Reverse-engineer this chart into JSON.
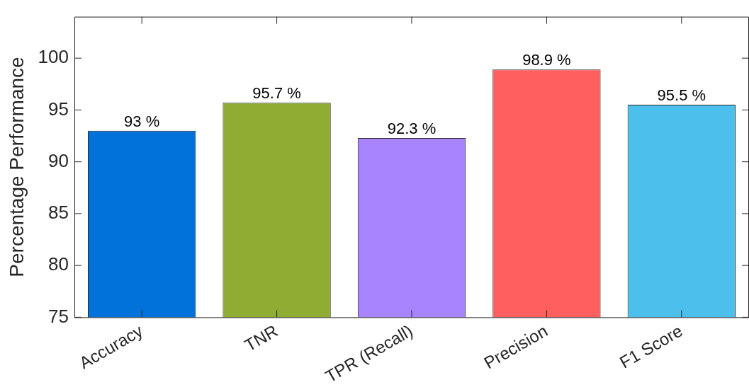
{
  "chart_data": {
    "type": "bar",
    "ylabel": "Percentage Performance",
    "categories": [
      "Accuracy",
      "TNR",
      "TPR (Recall)",
      "Precision",
      "F1 Score"
    ],
    "values": [
      93,
      95.7,
      92.3,
      98.9,
      95.5
    ],
    "value_labels": [
      "93 %",
      "95.7 %",
      "92.3 %",
      "98.9 %",
      "95.5 %"
    ],
    "colors": [
      "#0072d9",
      "#8fac33",
      "#a884ff",
      "#ff5f5f",
      "#4dbfec"
    ],
    "ylim": [
      75,
      104
    ],
    "yticks": [
      75,
      80,
      85,
      90,
      95,
      100
    ],
    "grid": false,
    "legend": false
  }
}
